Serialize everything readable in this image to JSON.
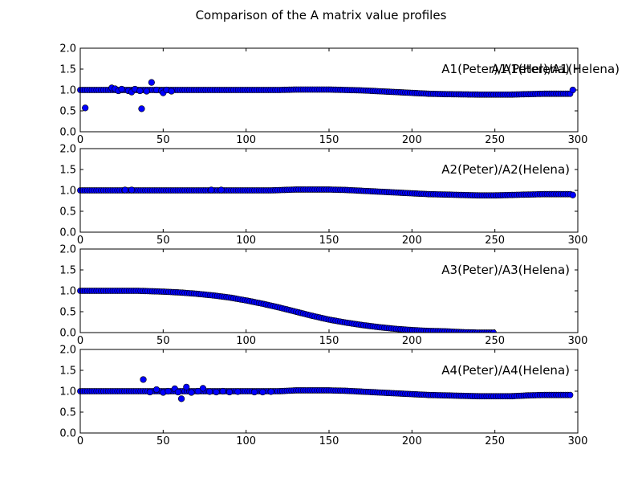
{
  "figure": {
    "title": "Comparison of the A matrix value profiles"
  },
  "style": {
    "marker_fill": "#0000ff",
    "marker_edge": "#000000",
    "axes_edge": "#000000",
    "background": "#ffffff"
  },
  "chart_data": [
    {
      "type": "scatter",
      "annotation": "A1(Peter)/A1(Helena)",
      "annotation_overlap": "A1(Peter)/A1(Helena)",
      "xlim": [
        0,
        300
      ],
      "ylim": [
        0,
        2
      ],
      "xticks": [
        "0",
        "50",
        "100",
        "150",
        "200",
        "250",
        "300"
      ],
      "yticks": [
        "0.0",
        "0.5",
        "1.0",
        "1.5",
        "2.0"
      ],
      "profile": [
        [
          0,
          1.0
        ],
        [
          20,
          1.0
        ],
        [
          40,
          1.0
        ],
        [
          60,
          1.0
        ],
        [
          80,
          1.0
        ],
        [
          100,
          1.0
        ],
        [
          120,
          1.0
        ],
        [
          130,
          1.01
        ],
        [
          140,
          1.01
        ],
        [
          150,
          1.01
        ],
        [
          160,
          1.0
        ],
        [
          170,
          0.99
        ],
        [
          180,
          0.97
        ],
        [
          190,
          0.95
        ],
        [
          200,
          0.93
        ],
        [
          210,
          0.91
        ],
        [
          220,
          0.9
        ],
        [
          240,
          0.89
        ],
        [
          250,
          0.89
        ],
        [
          260,
          0.89
        ],
        [
          270,
          0.9
        ],
        [
          280,
          0.91
        ],
        [
          290,
          0.91
        ],
        [
          296,
          0.91
        ]
      ],
      "outliers": [
        [
          3,
          0.57
        ],
        [
          19,
          1.05
        ],
        [
          21,
          1.03
        ],
        [
          23,
          0.98
        ],
        [
          25,
          1.02
        ],
        [
          29,
          0.98
        ],
        [
          31,
          0.95
        ],
        [
          33,
          1.02
        ],
        [
          36,
          0.98
        ],
        [
          37,
          0.55
        ],
        [
          40,
          0.97
        ],
        [
          43,
          1.18
        ],
        [
          46,
          1.0
        ],
        [
          49,
          0.98
        ],
        [
          50,
          0.93
        ],
        [
          52,
          1.0
        ],
        [
          55,
          0.97
        ],
        [
          297,
          1.0
        ]
      ]
    },
    {
      "type": "scatter",
      "annotation": "A2(Peter)/A2(Helena)",
      "xlim": [
        0,
        300
      ],
      "ylim": [
        0,
        2
      ],
      "xticks": [
        "0",
        "50",
        "100",
        "150",
        "200",
        "250",
        "300"
      ],
      "yticks": [
        "0.0",
        "0.5",
        "1.0",
        "1.5",
        "2.0"
      ],
      "profile": [
        [
          0,
          1.0
        ],
        [
          40,
          1.0
        ],
        [
          80,
          1.0
        ],
        [
          100,
          1.0
        ],
        [
          115,
          1.0
        ],
        [
          130,
          1.02
        ],
        [
          140,
          1.02
        ],
        [
          150,
          1.02
        ],
        [
          160,
          1.01
        ],
        [
          170,
          0.99
        ],
        [
          180,
          0.97
        ],
        [
          190,
          0.95
        ],
        [
          200,
          0.93
        ],
        [
          210,
          0.91
        ],
        [
          220,
          0.9
        ],
        [
          230,
          0.89
        ],
        [
          240,
          0.88
        ],
        [
          250,
          0.88
        ],
        [
          260,
          0.89
        ],
        [
          270,
          0.9
        ],
        [
          280,
          0.91
        ],
        [
          296,
          0.91
        ]
      ],
      "outliers": [
        [
          27,
          1.01
        ],
        [
          31,
          1.01
        ],
        [
          79,
          1.01
        ],
        [
          85,
          1.01
        ],
        [
          297,
          0.89
        ]
      ]
    },
    {
      "type": "scatter",
      "annotation": "A3(Peter)/A3(Helena)",
      "xlim": [
        0,
        300
      ],
      "ylim": [
        0,
        2
      ],
      "xticks": [
        "0",
        "50",
        "100",
        "150",
        "200",
        "250",
        "300"
      ],
      "yticks": [
        "0.0",
        "0.5",
        "1.0",
        "1.5",
        "2.0"
      ],
      "profile": [
        [
          0,
          1.0
        ],
        [
          20,
          1.0
        ],
        [
          35,
          1.0
        ],
        [
          50,
          0.98
        ],
        [
          60,
          0.96
        ],
        [
          70,
          0.93
        ],
        [
          80,
          0.89
        ],
        [
          90,
          0.84
        ],
        [
          100,
          0.77
        ],
        [
          110,
          0.69
        ],
        [
          120,
          0.6
        ],
        [
          130,
          0.5
        ],
        [
          140,
          0.4
        ],
        [
          150,
          0.31
        ],
        [
          160,
          0.24
        ],
        [
          170,
          0.18
        ],
        [
          180,
          0.13
        ],
        [
          190,
          0.09
        ],
        [
          200,
          0.06
        ],
        [
          210,
          0.04
        ],
        [
          220,
          0.03
        ],
        [
          230,
          0.01
        ],
        [
          240,
          0.0
        ],
        [
          250,
          0.0
        ]
      ],
      "outliers": []
    },
    {
      "type": "scatter",
      "annotation": "A4(Peter)/A4(Helena)",
      "xlim": [
        0,
        300
      ],
      "ylim": [
        0,
        2
      ],
      "xticks": [
        "0",
        "50",
        "100",
        "150",
        "200",
        "250",
        "300"
      ],
      "yticks": [
        "0.0",
        "0.5",
        "1.0",
        "1.5",
        "2.0"
      ],
      "profile": [
        [
          0,
          1.0
        ],
        [
          40,
          1.0
        ],
        [
          80,
          1.0
        ],
        [
          100,
          1.0
        ],
        [
          120,
          1.0
        ],
        [
          130,
          1.02
        ],
        [
          140,
          1.02
        ],
        [
          150,
          1.02
        ],
        [
          160,
          1.01
        ],
        [
          170,
          0.99
        ],
        [
          180,
          0.97
        ],
        [
          190,
          0.95
        ],
        [
          200,
          0.93
        ],
        [
          210,
          0.91
        ],
        [
          220,
          0.9
        ],
        [
          230,
          0.89
        ],
        [
          240,
          0.88
        ],
        [
          250,
          0.88
        ],
        [
          260,
          0.88
        ],
        [
          270,
          0.9
        ],
        [
          280,
          0.91
        ],
        [
          296,
          0.91
        ]
      ],
      "outliers": [
        [
          38,
          1.28
        ],
        [
          42,
          0.98
        ],
        [
          46,
          1.04
        ],
        [
          50,
          0.97
        ],
        [
          53,
          1.0
        ],
        [
          57,
          1.06
        ],
        [
          59,
          0.98
        ],
        [
          61,
          0.82
        ],
        [
          64,
          1.1
        ],
        [
          67,
          0.97
        ],
        [
          71,
          1.0
        ],
        [
          74,
          1.07
        ],
        [
          78,
          0.99
        ],
        [
          82,
          0.98
        ],
        [
          86,
          1.0
        ],
        [
          90,
          0.98
        ],
        [
          95,
          0.99
        ],
        [
          105,
          0.98
        ],
        [
          110,
          0.98
        ],
        [
          115,
          0.99
        ]
      ]
    }
  ]
}
